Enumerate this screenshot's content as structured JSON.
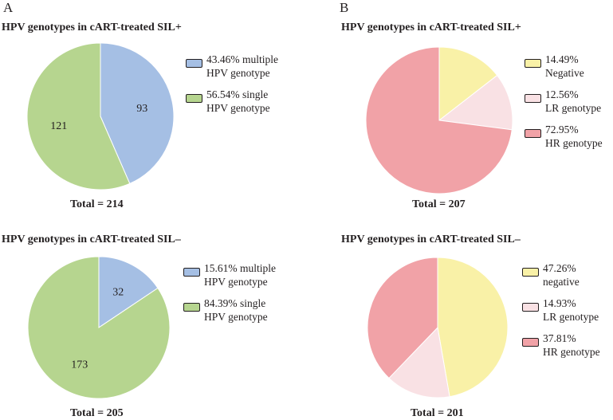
{
  "panels": {
    "A": "A",
    "B": "B"
  },
  "colors": {
    "multiple": "#a5bfe4",
    "single": "#b6d58f",
    "negative": "#f9f1a7",
    "lr": "#f9e1e4",
    "hr": "#f1a2a7"
  },
  "chart_data": [
    {
      "type": "pie",
      "title": "HPV genotypes in cART-treated SIL+",
      "total_label": "Total = 214",
      "slices": [
        {
          "name": "multiple HPV genotype",
          "value": 93,
          "percent": 43.46,
          "label": "93",
          "color_key": "multiple",
          "legend_line1": "43.46% multiple",
          "legend_line2": "HPV genotype"
        },
        {
          "name": "single HPV genotype",
          "value": 121,
          "percent": 56.54,
          "label": "121",
          "color_key": "single",
          "legend_line1": "56.54% single",
          "legend_line2": "HPV genotype"
        }
      ]
    },
    {
      "type": "pie",
      "title": "HPV genotypes in cART-treated SIL+",
      "total_label": "Total = 207",
      "slices": [
        {
          "name": "Negative",
          "value": 14.49,
          "percent": 14.49,
          "label": "",
          "color_key": "negative",
          "legend_line1": "14.49%",
          "legend_line2": "Negative"
        },
        {
          "name": "LR genotype",
          "value": 12.56,
          "percent": 12.56,
          "label": "",
          "color_key": "lr",
          "legend_line1": "12.56%",
          "legend_line2": "LR genotype"
        },
        {
          "name": "HR genotype",
          "value": 72.95,
          "percent": 72.95,
          "label": "",
          "color_key": "hr",
          "legend_line1": "72.95%",
          "legend_line2": "HR genotype"
        }
      ]
    },
    {
      "type": "pie",
      "title": "HPV genotypes in cART-treated SIL–",
      "total_label": "Total = 205",
      "slices": [
        {
          "name": "multiple HPV genotype",
          "value": 32,
          "percent": 15.61,
          "label": "32",
          "color_key": "multiple",
          "legend_line1": "15.61% multiple",
          "legend_line2": "HPV genotype"
        },
        {
          "name": "single HPV genotype",
          "value": 173,
          "percent": 84.39,
          "label": "173",
          "color_key": "single",
          "legend_line1": "84.39% single",
          "legend_line2": "HPV genotype"
        }
      ]
    },
    {
      "type": "pie",
      "title": "HPV genotypes in cART-treated SIL–",
      "total_label": "Total = 201",
      "slices": [
        {
          "name": "negative",
          "value": 47.26,
          "percent": 47.26,
          "label": "",
          "color_key": "negative",
          "legend_line1": "47.26%",
          "legend_line2": "negative"
        },
        {
          "name": "LR genotype",
          "value": 14.93,
          "percent": 14.93,
          "label": "",
          "color_key": "lr",
          "legend_line1": "14.93%",
          "legend_line2": "LR genotype"
        },
        {
          "name": "HR genotype",
          "value": 37.81,
          "percent": 37.81,
          "label": "",
          "color_key": "hr",
          "legend_line1": "37.81%",
          "legend_line2": "HR genotype"
        }
      ]
    }
  ]
}
